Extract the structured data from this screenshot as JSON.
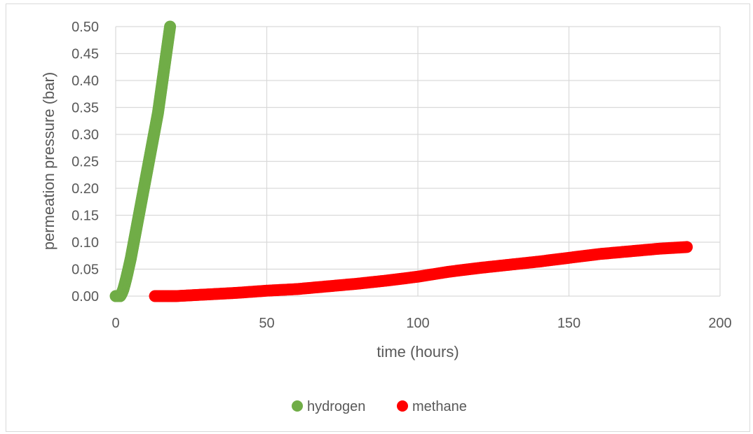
{
  "chart_data": {
    "type": "scatter",
    "title": "",
    "xlabel": "time (hours)",
    "ylabel": "permeation pressure (bar)",
    "xlim": [
      0,
      200
    ],
    "ylim": [
      0,
      0.5
    ],
    "xticks": [
      "0",
      "50",
      "100",
      "150",
      "200"
    ],
    "yticks": [
      "0.00",
      "0.05",
      "0.10",
      "0.15",
      "0.20",
      "0.25",
      "0.30",
      "0.35",
      "0.40",
      "0.45",
      "0.50"
    ],
    "grid": true,
    "legend_position": "bottom",
    "series": [
      {
        "name": "hydrogen",
        "color": "#70ad47",
        "x": [
          0,
          1,
          1.5,
          2,
          2.5,
          3,
          3.5,
          4,
          5,
          6,
          7,
          8,
          9,
          10,
          11,
          12,
          13,
          14,
          15,
          16,
          17,
          18
        ],
        "y": [
          0.0,
          0.0,
          0.0,
          0.005,
          0.012,
          0.022,
          0.033,
          0.045,
          0.07,
          0.1,
          0.13,
          0.16,
          0.19,
          0.22,
          0.25,
          0.28,
          0.31,
          0.34,
          0.38,
          0.42,
          0.46,
          0.5
        ]
      },
      {
        "name": "methane",
        "color": "#ff0000",
        "x": [
          13,
          20,
          30,
          40,
          50,
          60,
          70,
          80,
          90,
          100,
          110,
          120,
          130,
          140,
          150,
          160,
          170,
          180,
          189
        ],
        "y": [
          0.0,
          0.0,
          0.003,
          0.006,
          0.01,
          0.013,
          0.018,
          0.023,
          0.029,
          0.036,
          0.045,
          0.052,
          0.058,
          0.064,
          0.071,
          0.078,
          0.083,
          0.088,
          0.091
        ]
      }
    ]
  }
}
